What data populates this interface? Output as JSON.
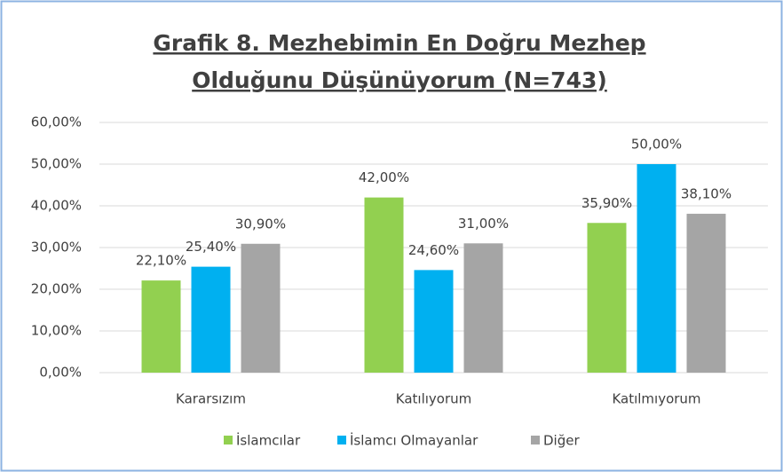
{
  "chart_data": {
    "type": "bar",
    "title": [
      "Grafik 8. Mezhebimin En Doğru Mezhep",
      "Olduğunu Düşünüyorum (N=743)"
    ],
    "categories": [
      "Kararsızım",
      "Katılıyorum",
      "Katılmıyorum"
    ],
    "series": [
      {
        "name": "İslamcılar",
        "color": "#92d050",
        "values": [
          22.1,
          42.0,
          35.9
        ],
        "value_labels": [
          "22,10%",
          "42,00%",
          "35,90%"
        ]
      },
      {
        "name": "İslamcı Olmayanlar",
        "color": "#00b0f0",
        "values": [
          25.4,
          24.6,
          50.0
        ],
        "value_labels": [
          "25,40%",
          "24,60%",
          "50,00%"
        ]
      },
      {
        "name": "Diğer",
        "color": "#a5a5a5",
        "values": [
          30.9,
          31.0,
          38.1
        ],
        "value_labels": [
          "30,90%",
          "31,00%",
          "38,10%"
        ]
      }
    ],
    "ylim": [
      0,
      60
    ],
    "yticks": [
      {
        "value": 0,
        "label": "0,00%"
      },
      {
        "value": 10,
        "label": "10,00%"
      },
      {
        "value": 20,
        "label": "20,00%"
      },
      {
        "value": 30,
        "label": "30,00%"
      },
      {
        "value": 40,
        "label": "40,00%"
      },
      {
        "value": 50,
        "label": "50,00%"
      },
      {
        "value": 60,
        "label": "60,00%"
      }
    ],
    "grid": true,
    "legend": "bottom"
  }
}
